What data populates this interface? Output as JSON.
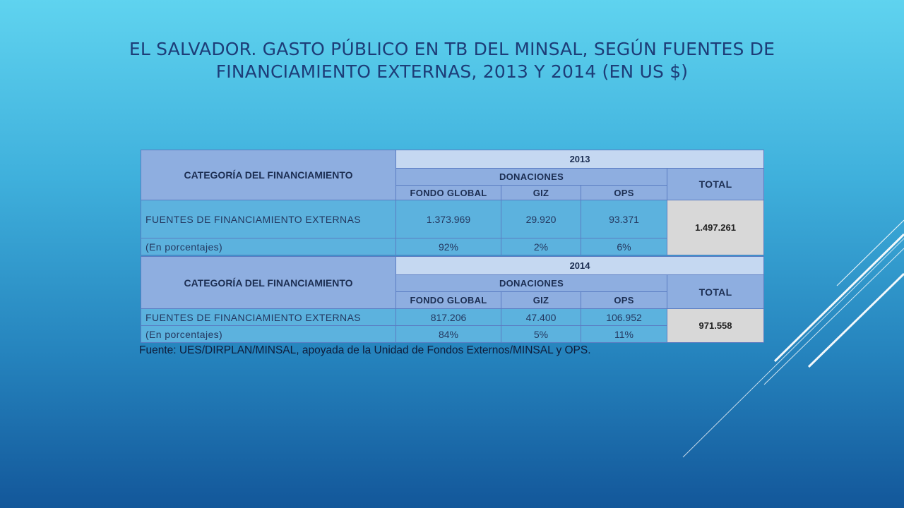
{
  "title": {
    "line1": "EL SALVADOR. GASTO PÚBLICO EN TB DEL MINSAL, SEGÚN FUENTES DE",
    "line2": "FINANCIAMIENTO EXTERNAS, 2013 Y 2014 (EN US $)"
  },
  "colors": {
    "header": "#8eaee0",
    "year_header": "#c5d8f1",
    "body": "#5cb2de",
    "total": "#d8d8d8"
  },
  "tables": [
    {
      "category_header": "CATEGORÍA DEL FINANCIAMIENTO",
      "year": "2013",
      "donations_header": "DONACIONES",
      "total_header": "TOTAL",
      "columns": [
        "FONDO GLOBAL",
        "GIZ",
        "OPS"
      ],
      "rows": [
        {
          "label": "FUENTES  DE FINANCIAMIENTO EXTERNAS",
          "values": [
            "1.373.969",
            "29.920",
            "93.371"
          ]
        },
        {
          "label": "(En porcentajes)",
          "values": [
            "92%",
            "2%",
            "6%"
          ]
        }
      ],
      "total": "1.497.261"
    },
    {
      "category_header": "CATEGORÍA DEL FINANCIAMIENTO",
      "year": "2014",
      "donations_header": "DONACIONES",
      "total_header": "TOTAL",
      "columns": [
        "FONDO GLOBAL",
        "GIZ",
        "OPS"
      ],
      "rows": [
        {
          "label": "FUENTES  DE FINANCIAMIENTO EXTERNAS",
          "values": [
            "817.206",
            "47.400",
            "106.952"
          ]
        },
        {
          "label": "(En porcentajes)",
          "values": [
            "84%",
            "5%",
            "11%"
          ]
        }
      ],
      "total": "971.558"
    }
  ],
  "source": "Fuente: UES/DIRPLAN/MINSAL, apoyada de la Unidad de Fondos Externos/MINSAL y OPS."
}
